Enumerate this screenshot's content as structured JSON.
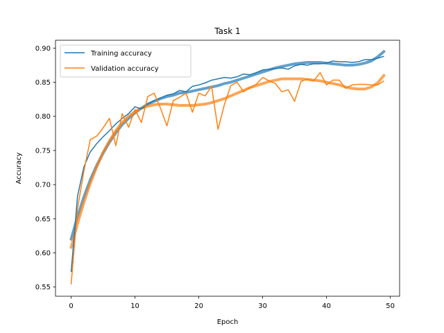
{
  "chart_data": {
    "type": "line",
    "title": "Task 1",
    "xlabel": "Epoch",
    "ylabel": "Accuracy",
    "xlim": [
      -2.45,
      51.45
    ],
    "ylim": [
      0.5365,
      0.9115
    ],
    "xticks": [
      0,
      10,
      20,
      30,
      40,
      50
    ],
    "yticks": [
      0.55,
      0.6,
      0.65,
      0.7,
      0.75,
      0.8,
      0.85,
      0.9
    ],
    "xtick_labels": [
      "0",
      "10",
      "20",
      "30",
      "40",
      "50"
    ],
    "ytick_labels": [
      "0.55",
      "0.60",
      "0.65",
      "0.70",
      "0.75",
      "0.80",
      "0.85",
      "0.90"
    ],
    "grid": false,
    "legend_position": "upper-left",
    "x": [
      0,
      1,
      2,
      3,
      4,
      5,
      6,
      7,
      8,
      9,
      10,
      11,
      12,
      13,
      14,
      15,
      16,
      17,
      18,
      19,
      20,
      21,
      22,
      23,
      24,
      25,
      26,
      27,
      28,
      29,
      30,
      31,
      32,
      33,
      34,
      35,
      36,
      37,
      38,
      39,
      40,
      41,
      42,
      43,
      44,
      45,
      46,
      47,
      48,
      49
    ],
    "series": [
      {
        "name": "Training accuracy",
        "color": "#1f77b4",
        "values": [
          0.572,
          0.683,
          0.726,
          0.748,
          0.76,
          0.77,
          0.779,
          0.789,
          0.797,
          0.804,
          0.814,
          0.811,
          0.818,
          0.823,
          0.827,
          0.831,
          0.833,
          0.838,
          0.836,
          0.844,
          0.846,
          0.849,
          0.853,
          0.855,
          0.857,
          0.856,
          0.858,
          0.862,
          0.861,
          0.864,
          0.868,
          0.869,
          0.87,
          0.871,
          0.869,
          0.874,
          0.876,
          0.875,
          0.877,
          0.877,
          0.878,
          0.881,
          0.88,
          0.88,
          0.879,
          0.88,
          0.883,
          0.883,
          0.885,
          0.888
        ]
      },
      {
        "name": "Validation accuracy",
        "color": "#ff7f0e",
        "values": [
          0.554,
          0.665,
          0.72,
          0.766,
          0.771,
          0.783,
          0.797,
          0.757,
          0.804,
          0.784,
          0.81,
          0.791,
          0.829,
          0.834,
          0.812,
          0.786,
          0.823,
          0.828,
          0.834,
          0.806,
          0.834,
          0.83,
          0.844,
          0.781,
          0.817,
          0.845,
          0.85,
          0.836,
          0.842,
          0.847,
          0.857,
          0.852,
          0.848,
          0.836,
          0.839,
          0.822,
          0.851,
          0.855,
          0.852,
          0.864,
          0.846,
          0.853,
          0.853,
          0.841,
          0.846,
          0.847,
          0.847,
          0.846,
          0.846,
          0.852
        ]
      }
    ],
    "trend_series": [
      {
        "color": "#1f77b4",
        "values": [
          0.62,
          0.653,
          0.682,
          0.707,
          0.728,
          0.746,
          0.762,
          0.776,
          0.788,
          0.797,
          0.805,
          0.812,
          0.818,
          0.822,
          0.826,
          0.829,
          0.831,
          0.834,
          0.835,
          0.837,
          0.839,
          0.841,
          0.843,
          0.845,
          0.848,
          0.85,
          0.853,
          0.856,
          0.859,
          0.862,
          0.865,
          0.868,
          0.871,
          0.873,
          0.875,
          0.877,
          0.878,
          0.879,
          0.879,
          0.879,
          0.878,
          0.877,
          0.876,
          0.875,
          0.875,
          0.876,
          0.878,
          0.881,
          0.887,
          0.895
        ]
      },
      {
        "color": "#ff7f0e",
        "values": [
          0.608,
          0.643,
          0.674,
          0.702,
          0.726,
          0.747,
          0.764,
          0.779,
          0.791,
          0.8,
          0.807,
          0.812,
          0.815,
          0.817,
          0.818,
          0.818,
          0.817,
          0.816,
          0.816,
          0.816,
          0.817,
          0.818,
          0.82,
          0.823,
          0.826,
          0.83,
          0.834,
          0.838,
          0.842,
          0.845,
          0.848,
          0.851,
          0.853,
          0.855,
          0.855,
          0.855,
          0.855,
          0.854,
          0.853,
          0.852,
          0.85,
          0.848,
          0.846,
          0.843,
          0.841,
          0.84,
          0.84,
          0.843,
          0.849,
          0.86
        ]
      }
    ]
  }
}
